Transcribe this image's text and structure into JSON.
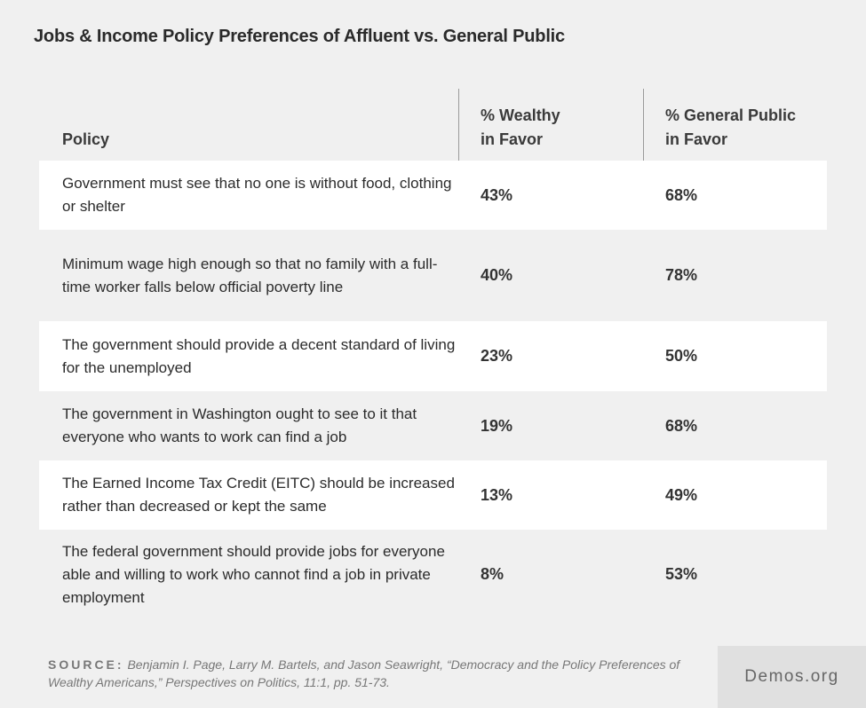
{
  "title": "Jobs & Income Policy Preferences of Affluent vs. General Public",
  "chart_data": {
    "type": "table",
    "columns": [
      "Policy",
      "% Wealthy in Favor",
      "% General Public in Favor"
    ],
    "header_lines": {
      "policy": "Policy",
      "wealthy_1": "% Wealthy",
      "wealthy_2": "in Favor",
      "public_1": "% General Public",
      "public_2": "in Favor"
    },
    "rows": [
      {
        "policy": "Government must see that no one is without food, clothing or shelter",
        "wealthy": "43%",
        "public": "68%"
      },
      {
        "policy": "Minimum wage high enough so that no family with a full-time worker falls below official poverty line",
        "wealthy": "40%",
        "public": "78%"
      },
      {
        "policy": "The government should provide a decent standard of living for the unemployed",
        "wealthy": "23%",
        "public": "50%"
      },
      {
        "policy": "The government in Washington ought to see to it that everyone who wants to work can find a job",
        "wealthy": "19%",
        "public": "68%"
      },
      {
        "policy": "The Earned Income Tax Credit (EITC) should be increased rather than decreased or kept the same",
        "wealthy": "13%",
        "public": "49%"
      },
      {
        "policy": "The federal government should provide jobs for everyone able and willing to work who cannot find a job in private employment",
        "wealthy": "8%",
        "public": "53%"
      }
    ]
  },
  "source": {
    "label": "SOURCE:",
    "text": "Benjamin I. Page, Larry M. Bartels, and Jason Seawright, “Democracy and the Policy Preferences of Wealthy Americans,” Perspectives on Politics, 11:1, pp. 51-73."
  },
  "brand": "Demos.org"
}
